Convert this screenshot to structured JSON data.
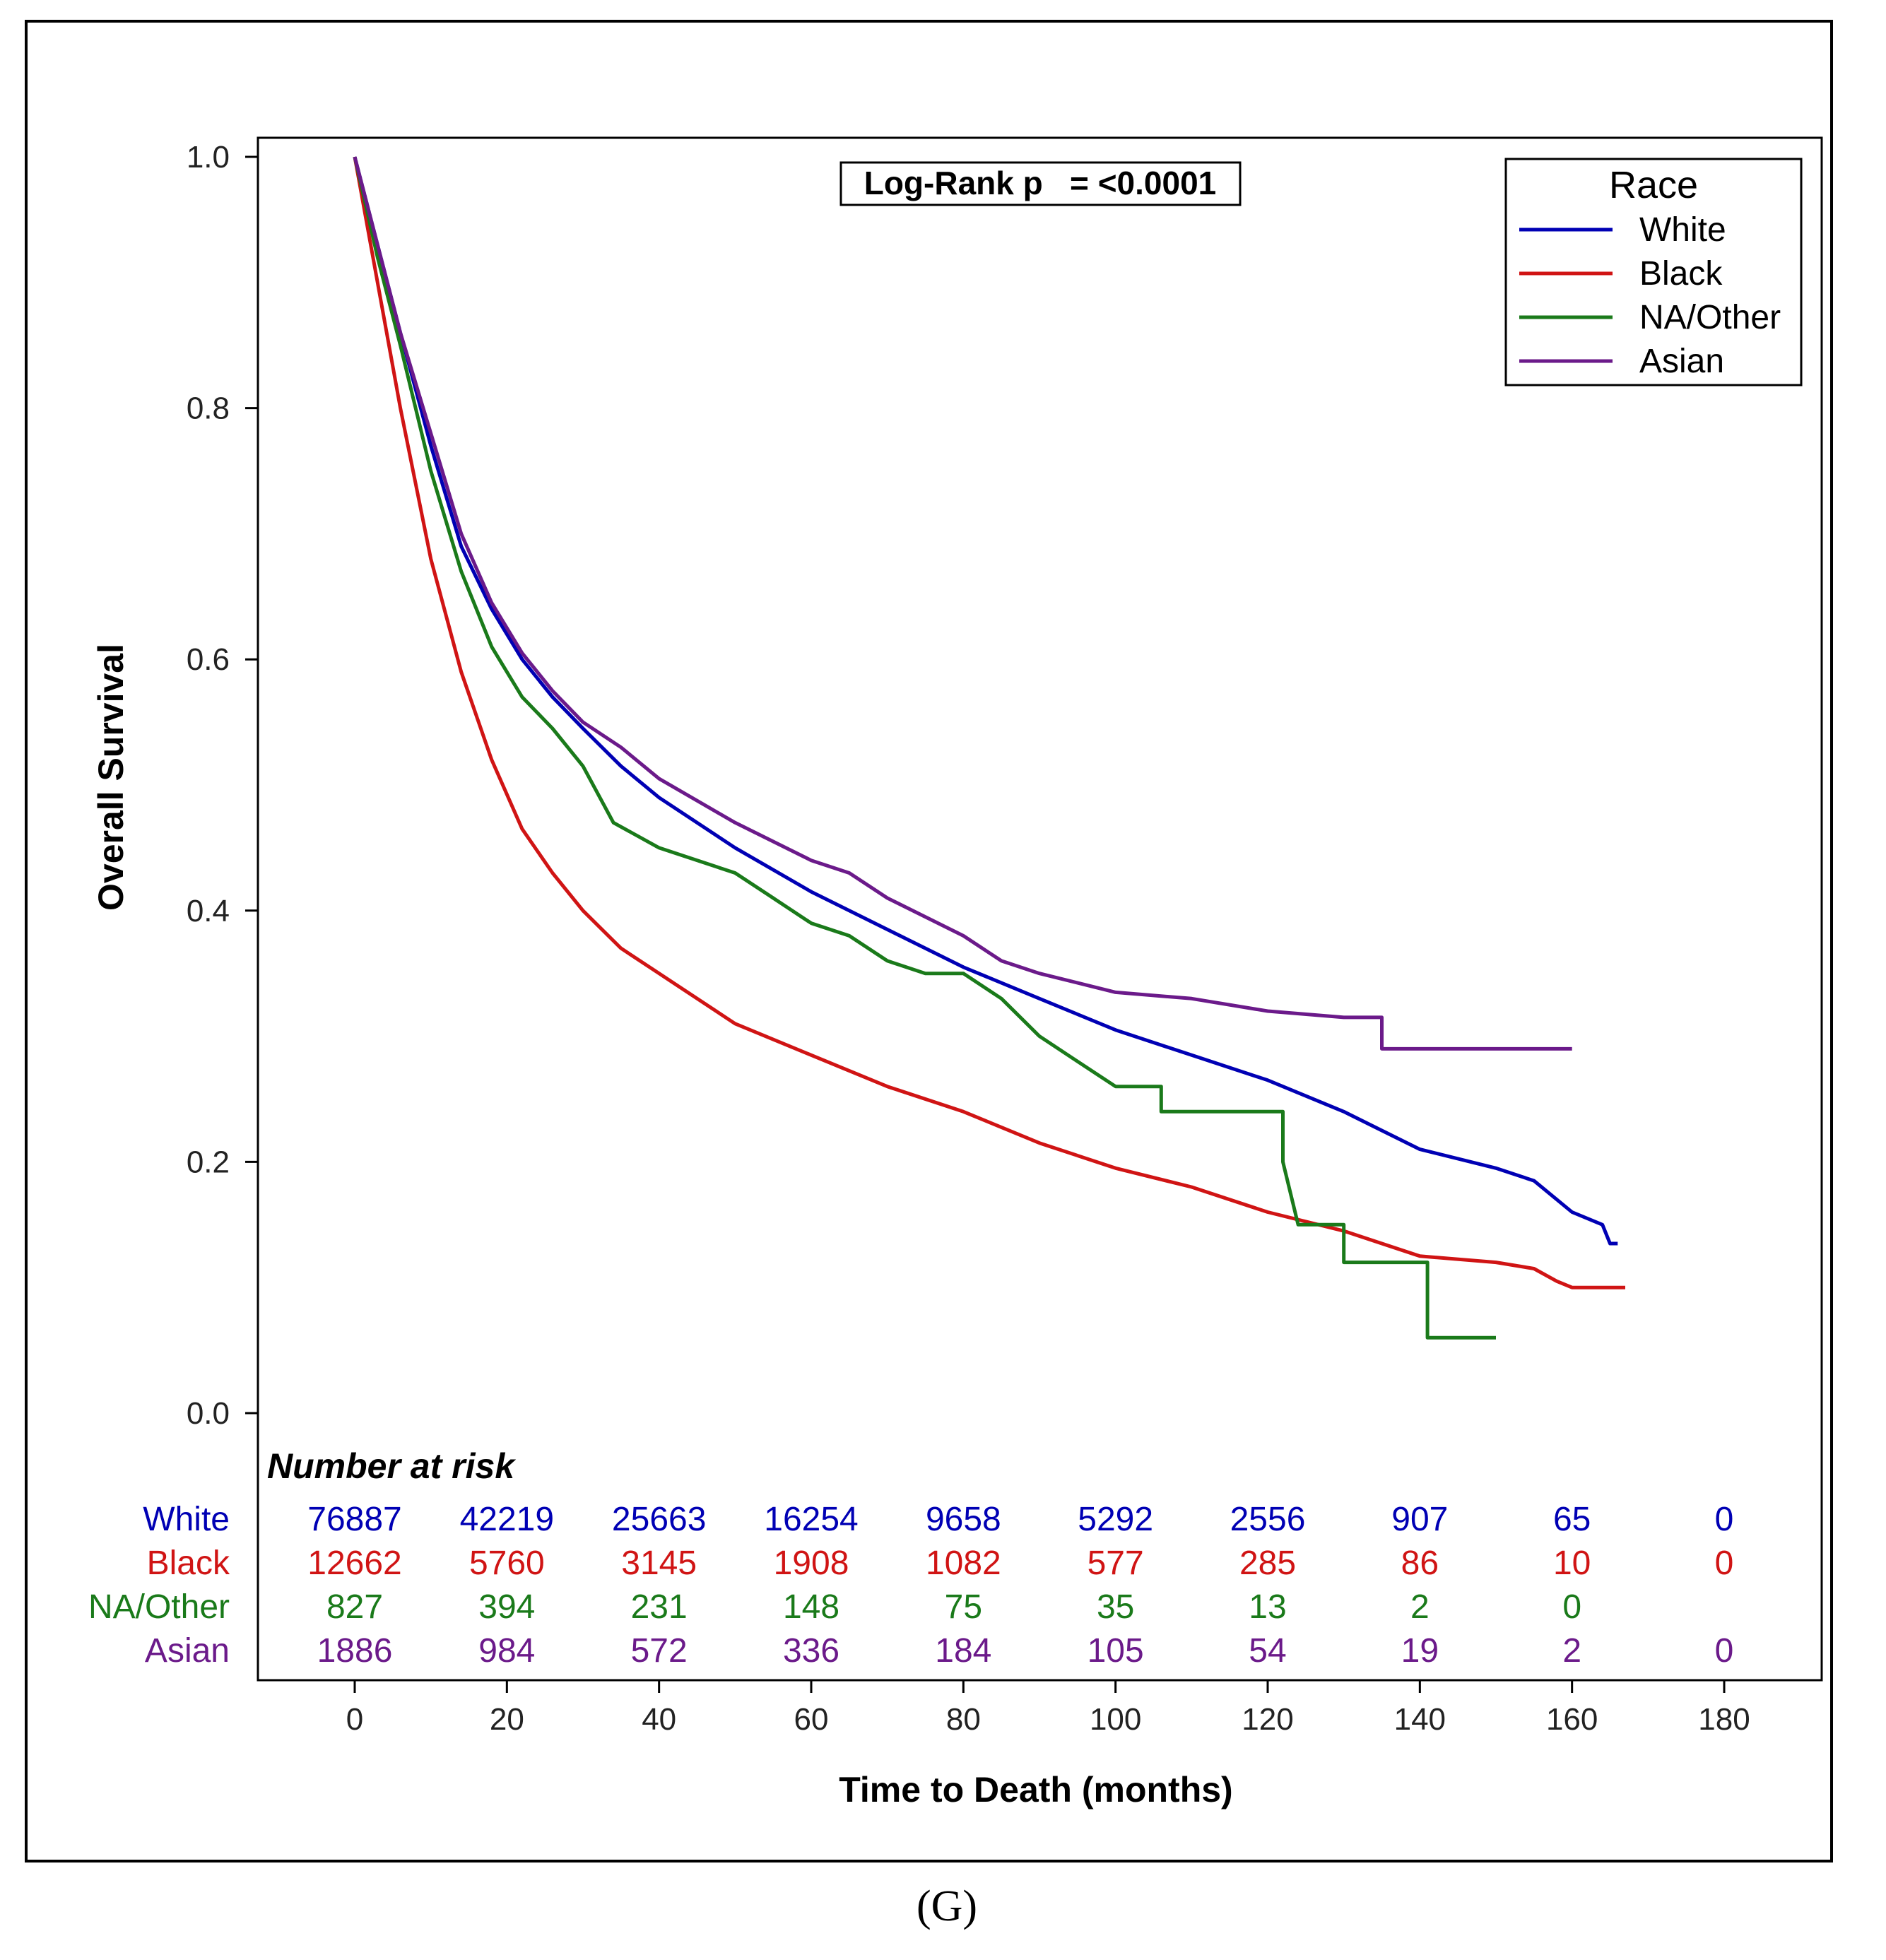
{
  "chart_data": {
    "type": "line",
    "subtype": "kaplan-meier",
    "caption": "(G)",
    "ylabel": "Overall Survival",
    "xlabel": "Time to Death (months)",
    "xlim": [
      -12,
      192
    ],
    "ylim": [
      0,
      1
    ],
    "x_ticks": [
      0,
      20,
      40,
      60,
      80,
      100,
      120,
      140,
      160,
      180
    ],
    "y_ticks": [
      "0.0",
      "0.2",
      "0.4",
      "0.6",
      "0.8",
      "1.0"
    ],
    "annotation": "Log-Rank p   = <0.0001",
    "legend": {
      "title": "Race",
      "position": "top-right"
    },
    "series": [
      {
        "name": "White",
        "color": "#0000b4",
        "points": [
          [
            0,
            1.0
          ],
          [
            3,
            0.93
          ],
          [
            6,
            0.86
          ],
          [
            10,
            0.77
          ],
          [
            14,
            0.69
          ],
          [
            18,
            0.64
          ],
          [
            22,
            0.6
          ],
          [
            26,
            0.57
          ],
          [
            30,
            0.545
          ],
          [
            35,
            0.515
          ],
          [
            40,
            0.49
          ],
          [
            50,
            0.45
          ],
          [
            60,
            0.415
          ],
          [
            70,
            0.385
          ],
          [
            80,
            0.355
          ],
          [
            90,
            0.33
          ],
          [
            100,
            0.305
          ],
          [
            110,
            0.285
          ],
          [
            120,
            0.265
          ],
          [
            130,
            0.24
          ],
          [
            135,
            0.225
          ],
          [
            140,
            0.21
          ],
          [
            150,
            0.195
          ],
          [
            155,
            0.185
          ],
          [
            160,
            0.16
          ],
          [
            164,
            0.15
          ],
          [
            165,
            0.135
          ],
          [
            166,
            0.135
          ]
        ]
      },
      {
        "name": "Black",
        "color": "#d01414",
        "points": [
          [
            0,
            1.0
          ],
          [
            3,
            0.9
          ],
          [
            6,
            0.8
          ],
          [
            10,
            0.68
          ],
          [
            14,
            0.59
          ],
          [
            18,
            0.52
          ],
          [
            22,
            0.465
          ],
          [
            26,
            0.43
          ],
          [
            30,
            0.4
          ],
          [
            35,
            0.37
          ],
          [
            40,
            0.35
          ],
          [
            50,
            0.31
          ],
          [
            60,
            0.285
          ],
          [
            70,
            0.26
          ],
          [
            80,
            0.24
          ],
          [
            90,
            0.215
          ],
          [
            100,
            0.195
          ],
          [
            110,
            0.18
          ],
          [
            120,
            0.16
          ],
          [
            130,
            0.145
          ],
          [
            140,
            0.125
          ],
          [
            150,
            0.12
          ],
          [
            155,
            0.115
          ],
          [
            158,
            0.105
          ],
          [
            160,
            0.1
          ],
          [
            167,
            0.1
          ]
        ]
      },
      {
        "name": "NA/Other",
        "color": "#1a7a1a",
        "points": [
          [
            0,
            1.0
          ],
          [
            3,
            0.92
          ],
          [
            6,
            0.85
          ],
          [
            10,
            0.75
          ],
          [
            14,
            0.67
          ],
          [
            18,
            0.61
          ],
          [
            22,
            0.57
          ],
          [
            26,
            0.545
          ],
          [
            30,
            0.515
          ],
          [
            34,
            0.47
          ],
          [
            40,
            0.45
          ],
          [
            50,
            0.43
          ],
          [
            55,
            0.41
          ],
          [
            60,
            0.39
          ],
          [
            65,
            0.38
          ],
          [
            70,
            0.36
          ],
          [
            75,
            0.35
          ],
          [
            80,
            0.35
          ],
          [
            85,
            0.33
          ],
          [
            90,
            0.3
          ],
          [
            95,
            0.28
          ],
          [
            100,
            0.26
          ],
          [
            106,
            0.26
          ],
          [
            106,
            0.24
          ],
          [
            122,
            0.24
          ],
          [
            122,
            0.2
          ],
          [
            124,
            0.15
          ],
          [
            130,
            0.15
          ],
          [
            130,
            0.12
          ],
          [
            141,
            0.12
          ],
          [
            141,
            0.06
          ],
          [
            150,
            0.06
          ]
        ]
      },
      {
        "name": "Asian",
        "color": "#6b1a8a",
        "points": [
          [
            0,
            1.0
          ],
          [
            3,
            0.93
          ],
          [
            6,
            0.86
          ],
          [
            10,
            0.78
          ],
          [
            14,
            0.7
          ],
          [
            18,
            0.645
          ],
          [
            22,
            0.605
          ],
          [
            26,
            0.575
          ],
          [
            30,
            0.55
          ],
          [
            35,
            0.53
          ],
          [
            40,
            0.505
          ],
          [
            50,
            0.47
          ],
          [
            60,
            0.44
          ],
          [
            65,
            0.43
          ],
          [
            70,
            0.41
          ],
          [
            80,
            0.38
          ],
          [
            85,
            0.36
          ],
          [
            90,
            0.35
          ],
          [
            100,
            0.335
          ],
          [
            110,
            0.33
          ],
          [
            120,
            0.32
          ],
          [
            130,
            0.315
          ],
          [
            135,
            0.315
          ],
          [
            135,
            0.29
          ],
          [
            160,
            0.29
          ]
        ]
      }
    ],
    "risk_table": {
      "title": "Number at risk",
      "columns": [
        0,
        20,
        40,
        60,
        80,
        100,
        120,
        140,
        160,
        180
      ],
      "rows": [
        {
          "name": "White",
          "values": [
            "76887",
            "42219",
            "25663",
            "16254",
            "9658",
            "5292",
            "2556",
            "907",
            "65",
            "0"
          ]
        },
        {
          "name": "Black",
          "values": [
            "12662",
            "5760",
            "3145",
            "1908",
            "1082",
            "577",
            "285",
            "86",
            "10",
            "0"
          ]
        },
        {
          "name": "NA/Other",
          "values": [
            "827",
            "394",
            "231",
            "148",
            "75",
            "35",
            "13",
            "2",
            "0",
            ""
          ]
        },
        {
          "name": "Asian",
          "values": [
            "1886",
            "984",
            "572",
            "336",
            "184",
            "105",
            "54",
            "19",
            "2",
            "0"
          ]
        }
      ]
    }
  }
}
